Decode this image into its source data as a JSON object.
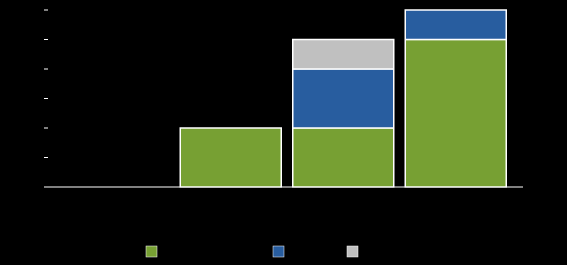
{
  "chart_data": {
    "type": "stacked-bar",
    "categories": [
      null,
      null,
      null,
      null
    ],
    "series": [
      {
        "color": "#77a033",
        "values": [
          0,
          2,
          2,
          5
        ]
      },
      {
        "color": "#285d9f",
        "values": [
          0,
          0,
          2,
          1
        ]
      },
      {
        "color": "#c0c0c0",
        "values": [
          0,
          0,
          1,
          0
        ]
      }
    ],
    "ylim": [
      0,
      6
    ],
    "yticks": [
      0,
      1,
      2,
      3,
      4,
      5,
      6
    ],
    "grid": false,
    "legend": "bottom"
  }
}
